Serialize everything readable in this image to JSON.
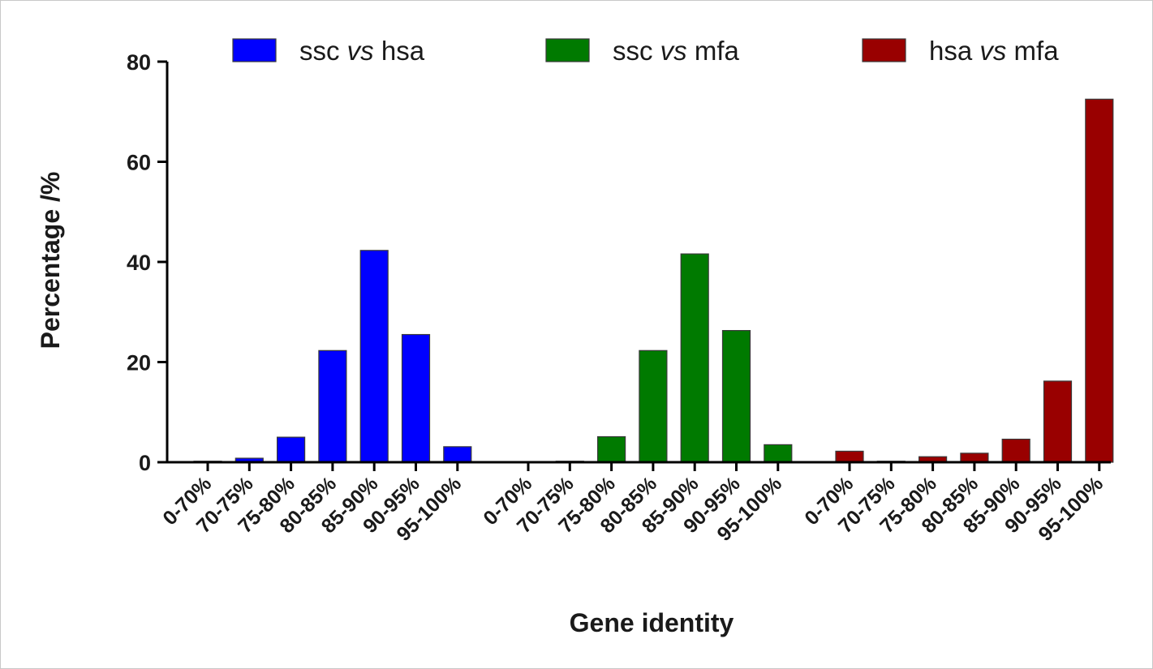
{
  "chart_data": {
    "type": "bar",
    "ylabel": "Percentage /%",
    "xlabel": "Gene identity",
    "ylim": [
      0,
      80
    ],
    "yticks": [
      0,
      20,
      40,
      60,
      80
    ],
    "grid": false,
    "legend_position": "top",
    "categories": [
      "0-70%",
      "70-75%",
      "75-80%",
      "80-85%",
      "85-90%",
      "90-95%",
      "95-100%"
    ],
    "series": [
      {
        "name": "ssc vs hsa",
        "name_parts": [
          "ssc ",
          "vs",
          " hsa"
        ],
        "color": "#0000ff",
        "values": [
          0.2,
          0.8,
          5.0,
          22.3,
          42.3,
          25.5,
          3.1
        ]
      },
      {
        "name": "ssc vs mfa",
        "name_parts": [
          "ssc ",
          "vs",
          " mfa"
        ],
        "color": "#007a00",
        "values": [
          0.1,
          0.2,
          5.1,
          22.3,
          41.6,
          26.3,
          3.5
        ]
      },
      {
        "name": "hsa vs mfa",
        "name_parts": [
          "hsa ",
          "vs",
          " mfa"
        ],
        "color": "#990000",
        "values": [
          2.2,
          0.2,
          1.1,
          1.8,
          4.6,
          16.2,
          72.5
        ]
      }
    ]
  }
}
